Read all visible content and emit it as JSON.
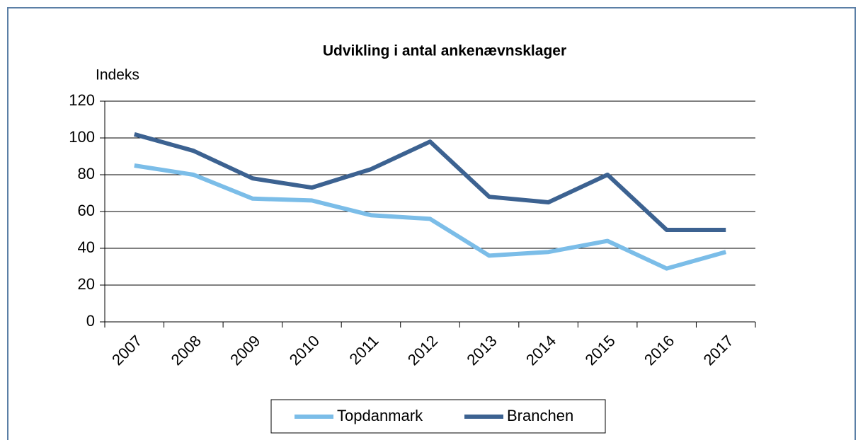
{
  "chart_data": {
    "type": "line",
    "title": "Udvikling i antal ankenævnsklager",
    "y_label": "Indeks",
    "categories": [
      "2007",
      "2008",
      "2009",
      "2010",
      "2011",
      "2012",
      "2013",
      "2014",
      "2015",
      "2016",
      "2017"
    ],
    "series": [
      {
        "name": "Topdanmark",
        "color": "#7bbde8",
        "values": [
          85,
          80,
          67,
          66,
          58,
          56,
          36,
          38,
          44,
          29,
          38
        ]
      },
      {
        "name": "Branchen",
        "color": "#3c6291",
        "values": [
          102,
          93,
          78,
          73,
          83,
          98,
          68,
          65,
          80,
          50,
          50
        ]
      }
    ],
    "ylim": [
      0,
      120
    ],
    "yticks": [
      0,
      20,
      40,
      60,
      80,
      100,
      120
    ],
    "grid": true,
    "legend": "bottom"
  }
}
